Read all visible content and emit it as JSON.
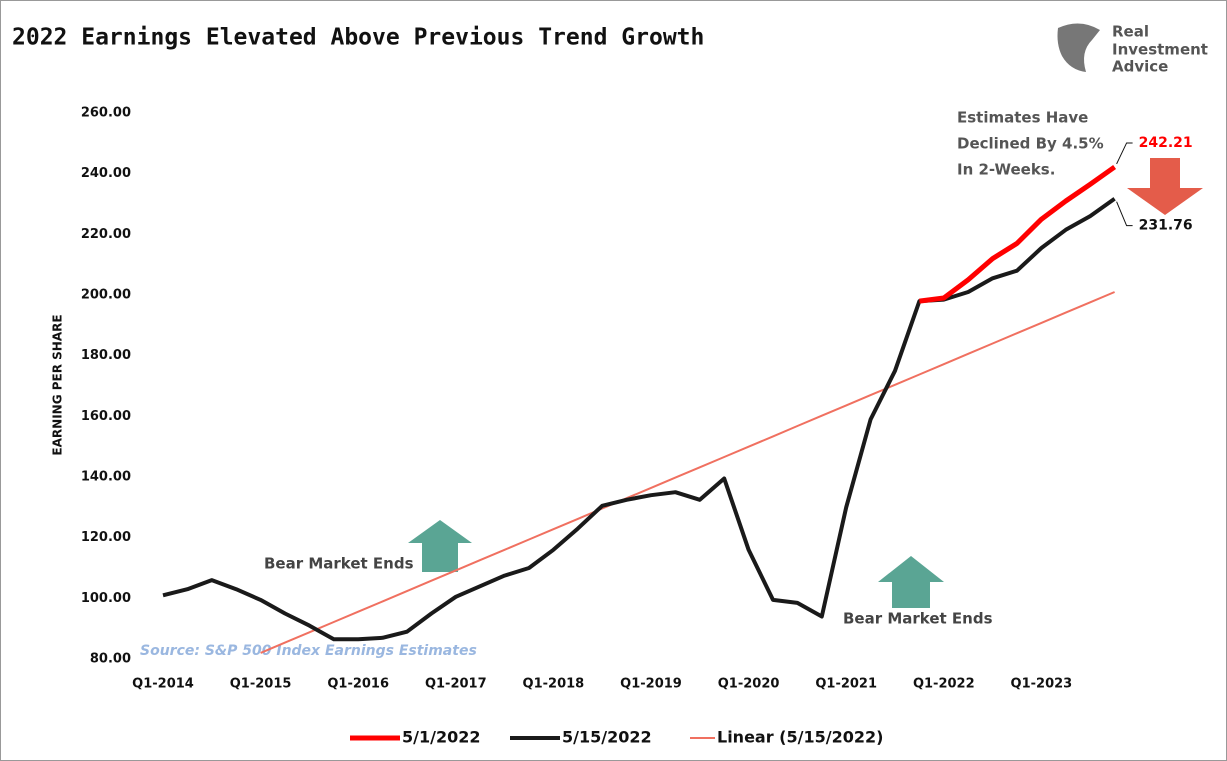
{
  "chart_data": {
    "type": "line",
    "title": "2022 Earnings Elevated Above Previous Trend Growth",
    "y_label": "EARNING PER SHARE",
    "source": "Source: S&P 500 Index Earnings Estimates",
    "logo": [
      "Real",
      "Investment",
      "Advice"
    ],
    "annotations": [
      "Estimates Have",
      "Declined By 4.5%",
      "In 2-Weeks."
    ],
    "bear_labels": [
      "Bear Market Ends",
      "Bear Market Ends"
    ],
    "categories": [
      "Q1-2014",
      null,
      null,
      null,
      "Q1-2015",
      null,
      null,
      null,
      "Q1-2016",
      null,
      null,
      null,
      "Q1-2017",
      null,
      null,
      null,
      "Q1-2018",
      null,
      null,
      null,
      "Q1-2019",
      null,
      null,
      null,
      "Q1-2020",
      null,
      null,
      null,
      "Q1-2021",
      null,
      null,
      null,
      "Q1-2022",
      null,
      null,
      null,
      "Q1-2023",
      null,
      null,
      null
    ],
    "series": [
      {
        "name": "5/1/2022",
        "color": "#ff0000",
        "width": 5,
        "values": [
          null,
          null,
          null,
          null,
          null,
          null,
          null,
          null,
          null,
          null,
          null,
          null,
          null,
          null,
          null,
          null,
          null,
          null,
          null,
          null,
          null,
          null,
          null,
          null,
          null,
          null,
          null,
          null,
          null,
          null,
          null,
          198,
          199,
          205,
          212,
          217,
          225,
          231,
          236.5,
          242.21
        ]
      },
      {
        "name": "5/15/2022",
        "color": "#1a1a1a",
        "width": 4,
        "values": [
          101,
          103,
          106,
          103,
          99.5,
          95,
          91,
          86.5,
          86.5,
          87,
          89,
          95,
          100.5,
          104,
          107.5,
          110,
          116,
          123,
          130.5,
          132.5,
          134,
          135,
          132.5,
          139.5,
          116,
          99.5,
          98.5,
          94,
          130,
          159,
          175,
          198,
          198.5,
          201,
          205.5,
          208,
          215.5,
          221.5,
          226,
          231.76
        ]
      },
      {
        "name": "Linear (5/15/2022)",
        "color": "#f07060",
        "width": 2,
        "values": [
          null,
          null,
          null,
          null,
          82.0,
          85.4,
          88.8,
          92.2,
          95.6,
          99.0,
          102.4,
          105.8,
          109.2,
          112.6,
          116.0,
          119.4,
          122.8,
          126.2,
          129.6,
          133.0,
          136.4,
          139.8,
          143.2,
          146.6,
          150.0,
          153.4,
          156.8,
          160.2,
          163.6,
          167.0,
          170.4,
          173.8,
          177.2,
          180.6,
          184.0,
          187.4,
          190.8,
          194.2,
          197.6,
          201.0
        ]
      }
    ],
    "ylim": [
      80,
      260
    ],
    "yticks": [
      {
        "value": 80,
        "label": "80.00"
      },
      {
        "value": 100,
        "label": "100.00"
      },
      {
        "value": 120,
        "label": "120.00"
      },
      {
        "value": 140,
        "label": "140.00"
      },
      {
        "value": 160,
        "label": "160.00"
      },
      {
        "value": 180,
        "label": "180.00"
      },
      {
        "value": 200,
        "label": "200.00"
      },
      {
        "value": 220,
        "label": "220.00"
      },
      {
        "value": 240,
        "label": "240.00"
      },
      {
        "value": 260,
        "label": "260.00"
      }
    ],
    "grid": false
  }
}
